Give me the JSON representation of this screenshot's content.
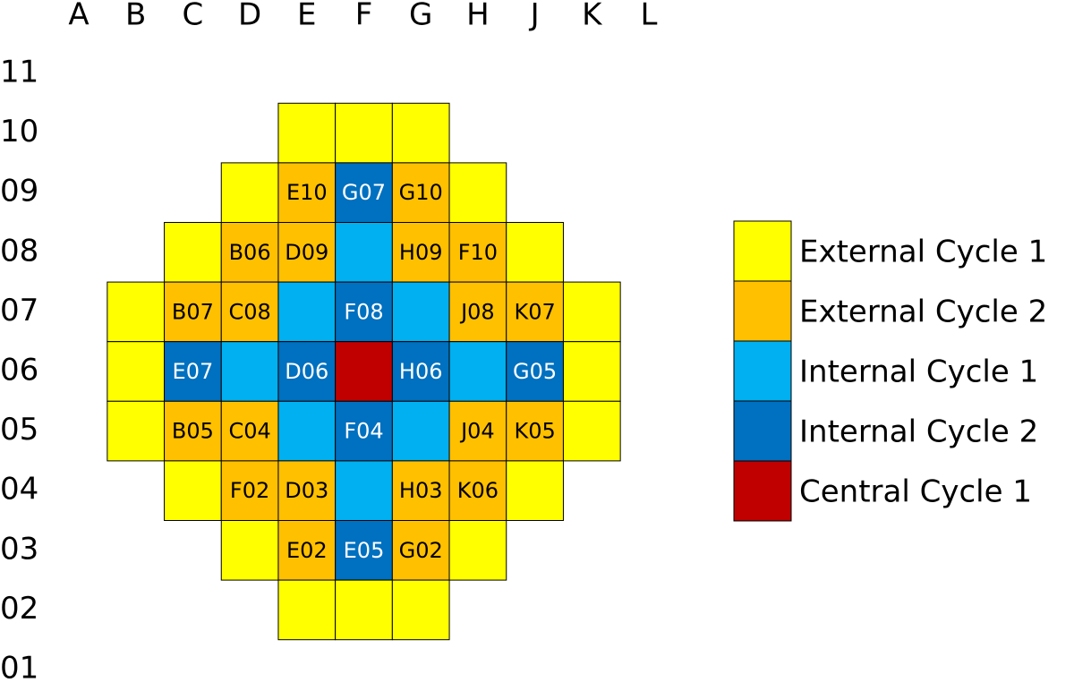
{
  "columns": [
    "A",
    "B",
    "C",
    "D",
    "E",
    "F",
    "G",
    "H",
    "J",
    "K",
    "L"
  ],
  "rows": [
    "11",
    "10",
    "09",
    "08",
    "07",
    "06",
    "05",
    "04",
    "03",
    "02",
    "01"
  ],
  "legend": [
    {
      "name": "External Cycle 1",
      "color": "#ffff00",
      "label_color": "#000000"
    },
    {
      "name": "External Cycle 2",
      "color": "#ffc000",
      "label_color": "#000000"
    },
    {
      "name": "Internal Cycle 1",
      "color": "#00b0f0",
      "label_color": "#ffffff"
    },
    {
      "name": "Internal Cycle 2",
      "color": "#0070c0",
      "label_color": "#ffffff"
    },
    {
      "name": "Central Cycle 1",
      "color": "#c00000",
      "label_color": "#ffffff"
    }
  ],
  "grid": [
    [
      null,
      null,
      null,
      null,
      null,
      null,
      null,
      null,
      null,
      null,
      null
    ],
    [
      null,
      null,
      null,
      null,
      {
        "cycle": "External Cycle 1"
      },
      {
        "cycle": "External Cycle 1"
      },
      {
        "cycle": "External Cycle 1"
      },
      null,
      null,
      null,
      null
    ],
    [
      null,
      null,
      null,
      {
        "cycle": "External Cycle 1"
      },
      {
        "cycle": "External Cycle 2",
        "label": "E10"
      },
      {
        "cycle": "Internal Cycle 2",
        "label": "G07"
      },
      {
        "cycle": "External Cycle 2",
        "label": "G10"
      },
      {
        "cycle": "External Cycle 1"
      },
      null,
      null,
      null
    ],
    [
      null,
      null,
      {
        "cycle": "External Cycle 1"
      },
      {
        "cycle": "External Cycle 2",
        "label": "B06"
      },
      {
        "cycle": "External Cycle 2",
        "label": "D09"
      },
      {
        "cycle": "Internal Cycle 1"
      },
      {
        "cycle": "External Cycle 2",
        "label": "H09"
      },
      {
        "cycle": "External Cycle 2",
        "label": "F10"
      },
      {
        "cycle": "External Cycle 1"
      },
      null,
      null
    ],
    [
      null,
      {
        "cycle": "External Cycle 1"
      },
      {
        "cycle": "External Cycle 2",
        "label": "B07"
      },
      {
        "cycle": "External Cycle 2",
        "label": "C08"
      },
      {
        "cycle": "Internal Cycle 1"
      },
      {
        "cycle": "Internal Cycle 2",
        "label": "F08"
      },
      {
        "cycle": "Internal Cycle 1"
      },
      {
        "cycle": "External Cycle 2",
        "label": "J08"
      },
      {
        "cycle": "External Cycle 2",
        "label": "K07"
      },
      {
        "cycle": "External Cycle 1"
      },
      null
    ],
    [
      null,
      {
        "cycle": "External Cycle 1"
      },
      {
        "cycle": "Internal Cycle 2",
        "label": "E07"
      },
      {
        "cycle": "Internal Cycle 1"
      },
      {
        "cycle": "Internal Cycle 2",
        "label": "D06"
      },
      {
        "cycle": "Central Cycle 1"
      },
      {
        "cycle": "Internal Cycle 2",
        "label": "H06"
      },
      {
        "cycle": "Internal Cycle 1"
      },
      {
        "cycle": "Internal Cycle 2",
        "label": "G05"
      },
      {
        "cycle": "External Cycle 1"
      },
      null
    ],
    [
      null,
      {
        "cycle": "External Cycle 1"
      },
      {
        "cycle": "External Cycle 2",
        "label": "B05"
      },
      {
        "cycle": "External Cycle 2",
        "label": "C04"
      },
      {
        "cycle": "Internal Cycle 1"
      },
      {
        "cycle": "Internal Cycle 2",
        "label": "F04"
      },
      {
        "cycle": "Internal Cycle 1"
      },
      {
        "cycle": "External Cycle 2",
        "label": "J04"
      },
      {
        "cycle": "External Cycle 2",
        "label": "K05"
      },
      {
        "cycle": "External Cycle 1"
      },
      null
    ],
    [
      null,
      null,
      {
        "cycle": "External Cycle 1"
      },
      {
        "cycle": "External Cycle 2",
        "label": "F02"
      },
      {
        "cycle": "External Cycle 2",
        "label": "D03"
      },
      {
        "cycle": "Internal Cycle 1"
      },
      {
        "cycle": "External Cycle 2",
        "label": "H03"
      },
      {
        "cycle": "External Cycle 2",
        "label": "K06"
      },
      {
        "cycle": "External Cycle 1"
      },
      null,
      null
    ],
    [
      null,
      null,
      null,
      {
        "cycle": "External Cycle 1"
      },
      {
        "cycle": "External Cycle 2",
        "label": "E02"
      },
      {
        "cycle": "Internal Cycle 2",
        "label": "E05"
      },
      {
        "cycle": "External Cycle 2",
        "label": "G02"
      },
      {
        "cycle": "External Cycle 1"
      },
      null,
      null,
      null
    ],
    [
      null,
      null,
      null,
      null,
      {
        "cycle": "External Cycle 1"
      },
      {
        "cycle": "External Cycle 1"
      },
      {
        "cycle": "External Cycle 1"
      },
      null,
      null,
      null,
      null
    ],
    [
      null,
      null,
      null,
      null,
      null,
      null,
      null,
      null,
      null,
      null,
      null
    ]
  ]
}
